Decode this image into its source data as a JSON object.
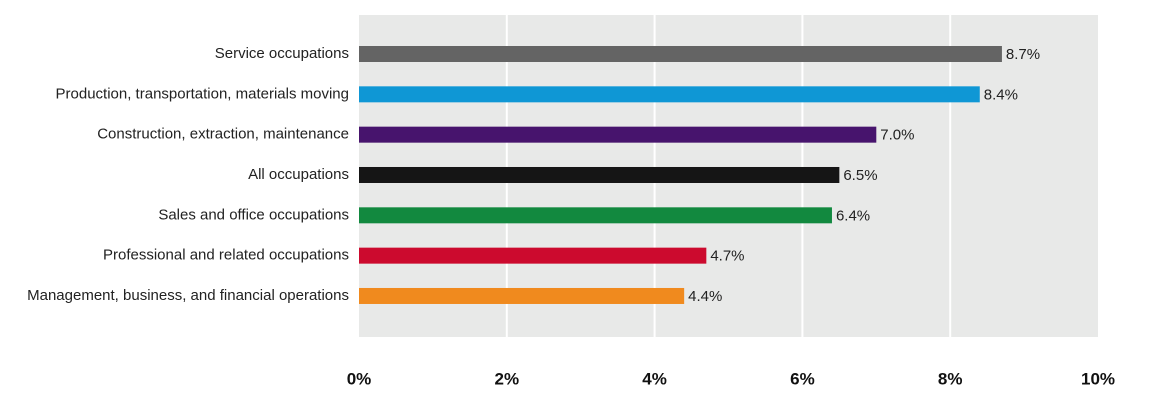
{
  "chart_data": {
    "type": "bar",
    "orientation": "horizontal",
    "title": "",
    "xlabel": "",
    "ylabel": "",
    "xlim": [
      0,
      10
    ],
    "ticks": [
      0,
      2,
      4,
      6,
      8,
      10
    ],
    "tick_labels": [
      "0%",
      "2%",
      "4%",
      "6%",
      "8%",
      "10%"
    ],
    "grid": true,
    "background_color": "#e8e9e8",
    "grid_color": "#ffffff",
    "categories": [
      "Service occupations",
      "Production, transportation, materials moving",
      "Construction, extraction, maintenance",
      "All occupations",
      "Sales and office occupations",
      "Professional and related occupations",
      "Management, business, and financial operations"
    ],
    "values": [
      8.7,
      8.4,
      7.0,
      6.5,
      6.4,
      4.7,
      4.4
    ],
    "value_labels": [
      "8.7%",
      "8.4%",
      "7.0%",
      "6.5%",
      "6.4%",
      "4.7%",
      "4.4%"
    ],
    "colors": [
      "#646464",
      "#0f97d5",
      "#47146d",
      "#151515",
      "#12893f",
      "#cc0a2e",
      "#f08a1e"
    ]
  }
}
